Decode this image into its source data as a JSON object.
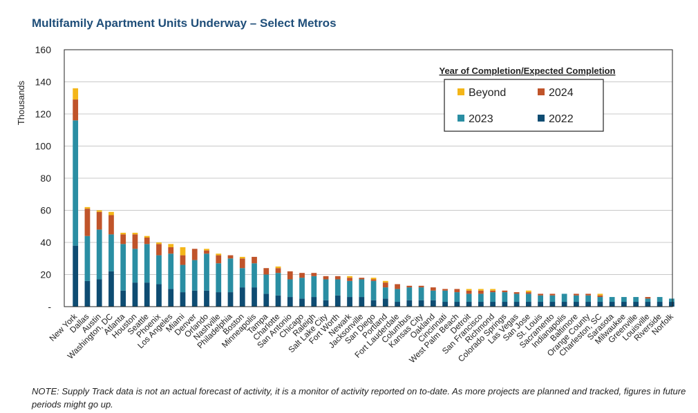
{
  "title": "Multifamily Apartment Units Underway – Select Metros",
  "note": "NOTE:  Supply Track data is not an actual forecast of activity, it is a monitor of activity reported on to-date. As more projects are planned and tracked, figures in future periods might go up.",
  "colors": {
    "2022": "#0e4c72",
    "2023": "#2a8ea3",
    "2024": "#c0542a",
    "Beyond": "#f4b619"
  },
  "chart_data": {
    "type": "bar",
    "stacked": true,
    "ylabel": "Thousands",
    "ylim": [
      0,
      160
    ],
    "yticks": [
      0,
      20,
      40,
      60,
      80,
      100,
      120,
      140,
      160
    ],
    "ytick_labels": [
      "-",
      "20",
      "40",
      "60",
      "80",
      "100",
      "120",
      "140",
      "160"
    ],
    "grid": true,
    "legend_title": "Year of Completion/Expected Completion",
    "legend_position": "top-right",
    "legend_labels": [
      "Beyond",
      "2024",
      "2023",
      "2022"
    ],
    "categories": [
      "New York",
      "Dallas",
      "Austin",
      "Washington, DC",
      "Atlanta",
      "Houston",
      "Seattle",
      "Phoenix",
      "Los Angeles",
      "Miami",
      "Denver",
      "Orlando",
      "Nashville",
      "Philadelphia",
      "Boston",
      "Minneapolis",
      "Tampa",
      "Charlotte",
      "San Antonio",
      "Chicago",
      "Raleigh",
      "Salt Lake City",
      "Fort Worth",
      "Newark",
      "Jacksonville",
      "San Diego",
      "Portland",
      "Fort Lauderdale",
      "Columbus",
      "Kansas City",
      "Oakland",
      "Cincinnati",
      "West Palm Beach",
      "Detroit",
      "San Francisco",
      "Richmond",
      "Colorado Springs",
      "Las Vegas",
      "San Jose",
      "St. Louis",
      "Sacramento",
      "Indianapolis",
      "Baltimore",
      "Orange County",
      "Charleston, SC",
      "Sarasota",
      "Milwaukee",
      "Greenville",
      "Louisville",
      "Riverside",
      "Norfolk"
    ],
    "series": [
      {
        "name": "2022",
        "values": [
          38,
          16,
          17,
          22,
          10,
          15,
          15,
          14,
          11,
          9,
          10,
          10,
          9,
          9,
          12,
          12,
          8,
          7,
          6,
          5,
          6,
          4,
          7,
          6,
          6,
          4,
          5,
          3,
          4,
          4,
          4,
          3,
          3,
          3,
          3,
          3,
          3,
          3,
          3,
          3,
          3,
          3,
          3,
          3,
          3,
          3,
          3,
          3,
          3,
          3,
          3
        ]
      },
      {
        "name": "2023",
        "values": [
          78,
          28,
          31,
          23,
          29,
          21,
          24,
          18,
          22,
          17,
          19,
          23,
          18,
          21,
          12,
          15,
          12,
          14,
          11,
          13,
          13,
          13,
          10,
          10,
          11,
          12,
          7,
          8,
          8,
          8,
          6,
          7,
          6,
          5,
          5,
          6,
          6,
          5,
          5,
          4,
          4,
          5,
          4,
          4,
          3,
          3,
          3,
          3,
          2,
          3,
          2
        ]
      },
      {
        "name": "2024",
        "values": [
          13,
          17,
          11,
          12,
          6,
          9,
          4,
          7,
          4,
          6,
          7,
          2,
          5,
          2,
          6,
          4,
          4,
          3,
          5,
          3,
          2,
          2,
          2,
          2,
          1,
          1,
          3,
          3,
          1,
          1,
          2,
          1,
          2,
          2,
          2,
          1,
          1,
          1,
          1,
          1,
          1,
          0,
          1,
          1,
          1,
          0,
          0,
          0,
          1,
          0,
          0
        ]
      },
      {
        "name": "Beyond",
        "values": [
          7,
          1,
          1,
          2,
          1,
          1,
          1,
          1,
          2,
          5,
          0,
          1,
          1,
          0,
          1,
          0,
          0,
          1,
          0,
          0,
          0,
          0,
          0,
          1,
          0,
          1,
          1,
          0,
          0,
          0,
          0,
          0,
          0,
          1,
          1,
          1,
          0,
          0,
          1,
          0,
          0,
          0,
          0,
          0,
          1,
          0,
          0,
          0,
          0,
          0,
          0
        ]
      }
    ]
  }
}
